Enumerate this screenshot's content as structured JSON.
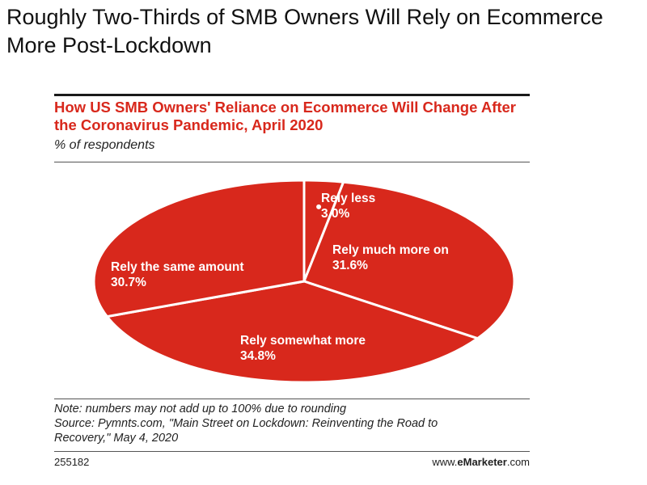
{
  "headline": "Roughly Two-Thirds of SMB Owners Will Rely on Ecommerce More Post-Lockdown",
  "chart_data": {
    "type": "pie",
    "title": "How US SMB Owners' Reliance on Ecommerce Will Change After the Coronavirus Pandemic, April 2020",
    "subtitle": "% of respondents",
    "slices": [
      {
        "label": "Rely less",
        "value": 3.0,
        "value_label": "3.0%"
      },
      {
        "label": "Rely much more on",
        "value": 31.6,
        "value_label": "31.6%"
      },
      {
        "label": "Rely somewhat more",
        "value": 34.8,
        "value_label": "34.8%"
      },
      {
        "label": "Rely the same amount",
        "value": 30.7,
        "value_label": "30.7%"
      }
    ],
    "colors": {
      "slice": "#d8281c",
      "divider": "#ffffff",
      "label": "#ffffff"
    }
  },
  "note": "Note: numbers may not add up to 100% due to rounding",
  "source_line1": "Source: Pymnts.com, \"Main Street on Lockdown: Reinventing the Road to",
  "source_line2": "Recovery,\" May 4, 2020",
  "chart_id": "255182",
  "brand": {
    "prefix": "www.",
    "name": "eMarketer",
    "suffix": ".com"
  }
}
